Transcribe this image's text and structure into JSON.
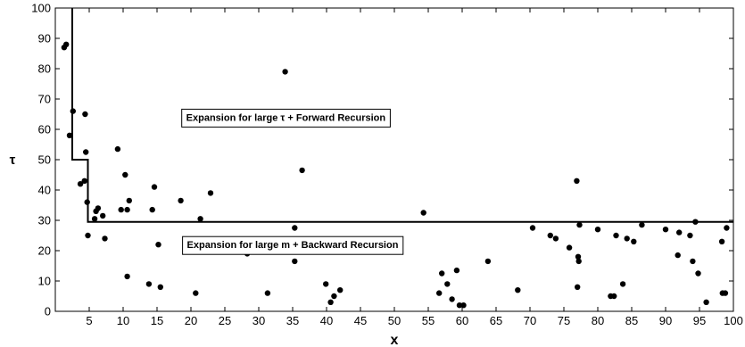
{
  "chart_data": {
    "type": "scatter",
    "xlabel": "x",
    "ylabel": "τ",
    "xlim": [
      0,
      100
    ],
    "ylim": [
      0,
      100
    ],
    "xticks": [
      5,
      10,
      15,
      20,
      25,
      30,
      35,
      40,
      45,
      50,
      55,
      60,
      65,
      70,
      75,
      80,
      85,
      90,
      95,
      100
    ],
    "yticks": [
      0,
      10,
      20,
      30,
      40,
      50,
      60,
      70,
      80,
      90,
      100
    ],
    "grid": false,
    "boundary": {
      "x": [
        2.5,
        2.5,
        4.8,
        4.8,
        100
      ],
      "y": [
        100,
        50,
        50,
        29.5,
        29.5
      ]
    },
    "annotations": [
      {
        "text": "Expansion for large τ + Forward Recursion",
        "x": 34,
        "y": 64
      },
      {
        "text": "Expansion for large m + Backward Recursion",
        "x": 35,
        "y": 22
      }
    ],
    "points": [
      [
        1.3,
        87
      ],
      [
        1.6,
        88
      ],
      [
        2.1,
        58
      ],
      [
        2.6,
        66
      ],
      [
        4.4,
        65
      ],
      [
        4.5,
        52.5
      ],
      [
        3.7,
        42
      ],
      [
        4.3,
        43
      ],
      [
        4.7,
        36
      ],
      [
        4.8,
        25
      ],
      [
        5.8,
        30.5
      ],
      [
        6.0,
        33
      ],
      [
        6.3,
        34
      ],
      [
        7.0,
        31.5
      ],
      [
        7.3,
        24
      ],
      [
        9.2,
        53.5
      ],
      [
        9.7,
        33.5
      ],
      [
        10.3,
        45
      ],
      [
        10.6,
        33.5
      ],
      [
        10.9,
        36.5
      ],
      [
        10.6,
        11.5
      ],
      [
        14.3,
        33.5
      ],
      [
        14.6,
        41
      ],
      [
        15.2,
        22
      ],
      [
        15.5,
        8
      ],
      [
        13.8,
        9
      ],
      [
        18.5,
        36.5
      ],
      [
        21.4,
        30.5
      ],
      [
        21.3,
        23
      ],
      [
        22.9,
        39
      ],
      [
        20.7,
        6
      ],
      [
        28.3,
        19
      ],
      [
        31.3,
        6
      ],
      [
        33.9,
        79
      ],
      [
        35.3,
        27.5
      ],
      [
        35.3,
        16.5
      ],
      [
        36.4,
        46.5
      ],
      [
        39.9,
        9
      ],
      [
        40.6,
        3
      ],
      [
        41.1,
        5
      ],
      [
        42.0,
        7
      ],
      [
        54.3,
        32.5
      ],
      [
        56.6,
        6
      ],
      [
        57.0,
        12.5
      ],
      [
        57.8,
        9
      ],
      [
        58.5,
        4
      ],
      [
        59.2,
        13.5
      ],
      [
        59.6,
        2
      ],
      [
        60.2,
        2
      ],
      [
        63.8,
        16.5
      ],
      [
        68.2,
        7
      ],
      [
        70.4,
        27.5
      ],
      [
        73.0,
        25
      ],
      [
        73.8,
        24
      ],
      [
        75.8,
        21
      ],
      [
        76.9,
        43
      ],
      [
        77.1,
        18
      ],
      [
        77.2,
        16.5
      ],
      [
        77.0,
        8
      ],
      [
        77.3,
        28.5
      ],
      [
        80.0,
        27
      ],
      [
        81.9,
        5
      ],
      [
        82.4,
        5
      ],
      [
        82.7,
        25
      ],
      [
        83.7,
        9
      ],
      [
        84.3,
        24
      ],
      [
        85.3,
        23
      ],
      [
        86.5,
        28.5
      ],
      [
        90.0,
        27
      ],
      [
        91.8,
        18.5
      ],
      [
        92.0,
        26
      ],
      [
        93.6,
        25
      ],
      [
        94.0,
        16.5
      ],
      [
        94.4,
        29.5
      ],
      [
        94.8,
        12.5
      ],
      [
        96.0,
        3
      ],
      [
        98.4,
        6
      ],
      [
        98.8,
        6
      ],
      [
        99.0,
        27.5
      ],
      [
        98.3,
        23
      ]
    ]
  }
}
